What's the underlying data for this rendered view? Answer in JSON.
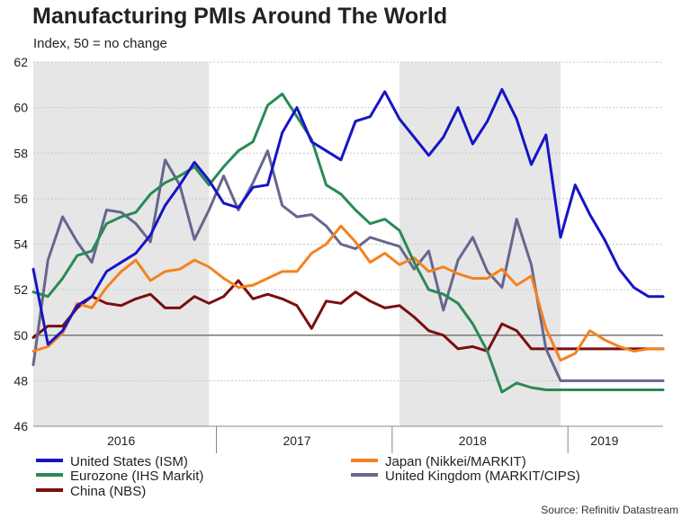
{
  "chart_data": {
    "type": "line",
    "title": "Manufacturing PMIs Around The World",
    "subtitle": "Index, 50 = no change",
    "source": "Source: Refinitiv Datastream",
    "ylim": [
      46,
      62
    ],
    "yticks": [
      46,
      48,
      50,
      52,
      54,
      56,
      58,
      60,
      62
    ],
    "reference_line": 50,
    "x_start": "2015-12",
    "x_end": "2019-07",
    "year_labels": [
      {
        "label": "2016",
        "center": "2016-06"
      },
      {
        "label": "2017",
        "center": "2017-06"
      },
      {
        "label": "2018",
        "center": "2018-06"
      },
      {
        "label": "2019",
        "center": "2019-03"
      }
    ],
    "shaded_periods": [
      {
        "start": "2015-12",
        "end": "2016-12"
      },
      {
        "start": "2018-01",
        "end": "2018-12"
      }
    ],
    "x": [
      "2015-12",
      "2016-01",
      "2016-02",
      "2016-03",
      "2016-04",
      "2016-05",
      "2016-06",
      "2016-07",
      "2016-08",
      "2016-09",
      "2016-10",
      "2016-11",
      "2016-12",
      "2017-01",
      "2017-02",
      "2017-03",
      "2017-04",
      "2017-05",
      "2017-06",
      "2017-07",
      "2017-08",
      "2017-09",
      "2017-10",
      "2017-11",
      "2017-12",
      "2018-01",
      "2018-02",
      "2018-03",
      "2018-04",
      "2018-05",
      "2018-06",
      "2018-07",
      "2018-08",
      "2018-09",
      "2018-10",
      "2018-11",
      "2018-12",
      "2019-01",
      "2019-02",
      "2019-03",
      "2019-04",
      "2019-05",
      "2019-06",
      "2019-07"
    ],
    "series": [
      {
        "name": "United States (ISM)",
        "color": "#1515c4",
        "values": [
          52.9,
          49.6,
          50.2,
          51.3,
          51.7,
          52.8,
          53.2,
          53.6,
          54.4,
          55.7,
          56.6,
          57.6,
          56.8,
          55.8,
          55.6,
          56.5,
          56.6,
          58.9,
          60.0,
          58.5,
          58.1,
          57.7,
          59.4,
          59.6,
          60.7,
          59.5,
          58.7,
          57.9,
          58.7,
          60.0,
          58.4,
          59.4,
          60.8,
          59.5,
          57.5,
          58.8,
          54.3,
          56.6,
          55.3,
          54.2,
          52.9,
          52.1,
          51.7,
          51.7
        ]
      },
      {
        "name": "Japan (Nikkei/MARKIT)",
        "color": "#f5821f",
        "values": [
          49.3,
          49.5,
          50.1,
          51.4,
          51.2,
          52.1,
          52.8,
          53.3,
          52.4,
          52.8,
          52.9,
          53.3,
          53.0,
          52.5,
          52.1,
          52.2,
          52.5,
          52.8,
          52.8,
          53.6,
          54.0,
          54.8,
          54.1,
          53.2,
          53.6,
          53.1,
          53.4,
          52.8,
          53.0,
          52.7,
          52.5,
          52.5,
          52.9,
          52.2,
          52.6,
          50.3,
          48.9,
          49.2,
          50.2,
          49.8,
          49.5,
          49.3,
          49.4,
          49.4
        ]
      },
      {
        "name": "Eurozone (IHS Markit)",
        "color": "#2a8a55",
        "values": [
          51.9,
          51.7,
          52.5,
          53.5,
          53.7,
          54.9,
          55.2,
          55.4,
          56.2,
          56.7,
          57.0,
          57.4,
          56.6,
          57.4,
          58.1,
          58.5,
          60.1,
          60.6,
          59.6,
          58.6,
          56.6,
          56.2,
          55.5,
          54.9,
          55.1,
          54.6,
          53.2,
          52.0,
          51.8,
          51.4,
          50.5,
          49.3,
          47.5,
          47.9,
          47.7,
          47.6,
          47.6,
          47.6,
          47.6,
          47.6,
          47.6,
          47.6,
          47.6,
          47.6
        ]
      },
      {
        "name": "United Kingdom (MARKIT/CIPS)",
        "color": "#66668f",
        "values": [
          48.7,
          53.3,
          55.2,
          54.1,
          53.2,
          55.5,
          55.4,
          54.9,
          54.1,
          57.7,
          56.6,
          54.2,
          55.5,
          57.0,
          55.5,
          56.7,
          58.1,
          55.7,
          55.2,
          55.3,
          54.8,
          54.0,
          53.8,
          54.3,
          54.1,
          53.9,
          52.9,
          53.7,
          51.1,
          53.3,
          54.3,
          52.8,
          52.1,
          55.1,
          53.1,
          49.4,
          48.0,
          48.0,
          48.0,
          48.0,
          48.0,
          48.0,
          48.0,
          48.0
        ]
      },
      {
        "name": "China (NBS)",
        "color": "#7a0e10",
        "values": [
          49.9,
          50.4,
          50.4,
          51.2,
          51.7,
          51.4,
          51.3,
          51.6,
          51.8,
          51.2,
          51.2,
          51.7,
          51.4,
          51.7,
          52.4,
          51.6,
          51.8,
          51.6,
          51.3,
          50.3,
          51.5,
          51.4,
          51.9,
          51.5,
          51.2,
          51.3,
          50.8,
          50.2,
          50.0,
          49.4,
          49.5,
          49.3,
          50.5,
          50.2,
          49.4,
          49.4,
          49.4,
          49.4,
          49.4,
          49.4,
          49.4,
          49.4,
          49.4,
          49.4
        ]
      }
    ]
  }
}
